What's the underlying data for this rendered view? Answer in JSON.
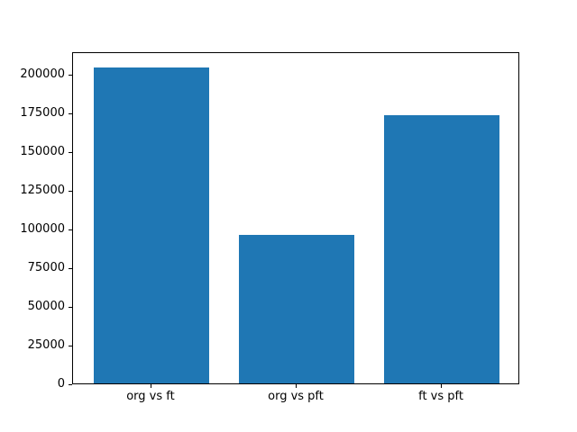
{
  "figure": {
    "background": "#ffffff",
    "title": ""
  },
  "chart_data": {
    "type": "bar",
    "categories": [
      "org vs ft",
      "org vs pft",
      "ft vs pft"
    ],
    "values": [
      204000,
      95700,
      173200
    ],
    "title": "",
    "xlabel": "",
    "ylabel": "",
    "ylim": [
      0,
      214300
    ],
    "yticks": [
      0,
      25000,
      50000,
      75000,
      100000,
      125000,
      150000,
      175000,
      200000
    ],
    "ytick_labels": [
      "0",
      "25000",
      "50000",
      "75000",
      "100000",
      "125000",
      "150000",
      "175000",
      "200000"
    ],
    "bar_color": "#1f77b4",
    "axis_color": "#000000",
    "text_color": "#000000",
    "grid": false,
    "legend": null
  }
}
